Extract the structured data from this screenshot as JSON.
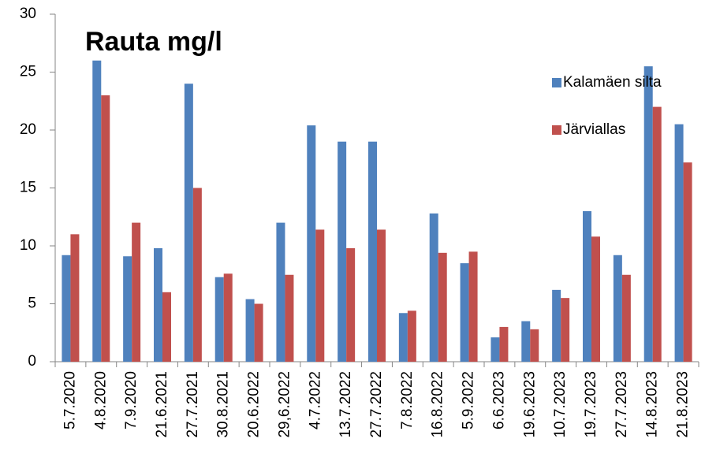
{
  "chart_data": {
    "type": "bar",
    "title": "Rauta mg/l",
    "categories": [
      "5.7.2020",
      "4.8.2020",
      "7.9.2020",
      "21.6.2021",
      "27.7.2021",
      "30.8.2021",
      "20.6.2022",
      "29,6.2022",
      "4.7.2022",
      "13.7.2022",
      "27.7.2022",
      "7.8.2022",
      "16.8.2022",
      "5.9.2022",
      "6.6.2023",
      "19.6.2023",
      "10.7.2023",
      "19.7.2023",
      "27.7.2023",
      "14.8.2023",
      "21.8.2023"
    ],
    "series": [
      {
        "name": "Kalamäen silta",
        "color": "#4f81bd",
        "values": [
          9.2,
          26,
          9.1,
          9.8,
          24,
          7.3,
          5.4,
          12,
          20.4,
          19,
          19,
          4.2,
          12.8,
          8.5,
          2.1,
          3.5,
          6.2,
          13,
          9.2,
          25.5,
          20.5
        ]
      },
      {
        "name": "Järviallas",
        "color": "#c0504d",
        "values": [
          11,
          23,
          12,
          6,
          15,
          7.6,
          5,
          7.5,
          11.4,
          9.8,
          11.4,
          4.4,
          9.4,
          9.5,
          3,
          2.8,
          5.5,
          10.8,
          7.5,
          22,
          17.2
        ]
      }
    ],
    "ylim": [
      0,
      30
    ],
    "yticks": [
      0,
      5,
      10,
      15,
      20,
      25,
      30
    ],
    "grid": false
  }
}
